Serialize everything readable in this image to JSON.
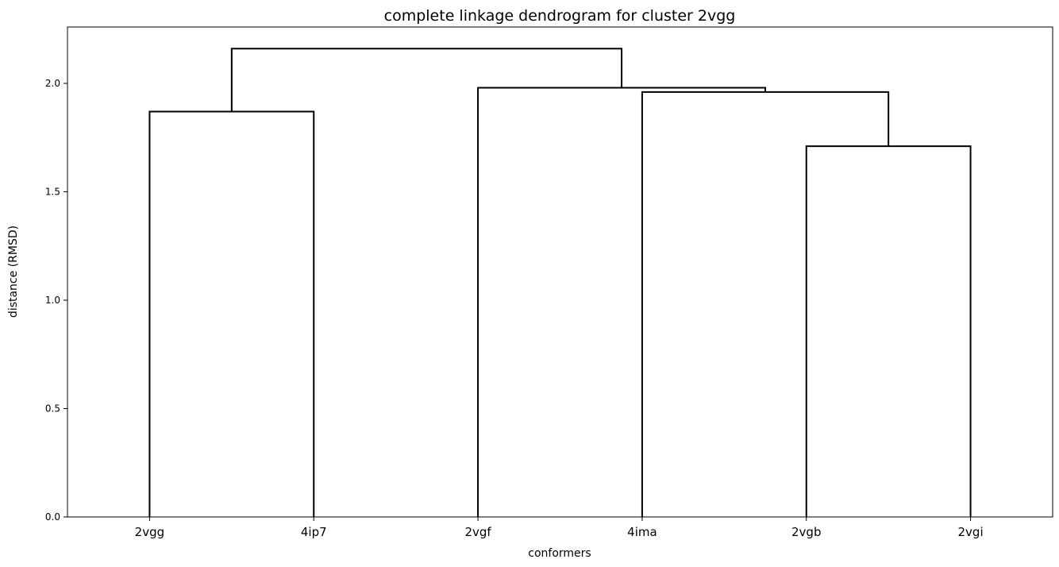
{
  "chart_data": {
    "type": "dendrogram",
    "title": "complete linkage dendrogram for cluster 2vgg",
    "xlabel": "conformers",
    "ylabel": "distance (RMSD)",
    "ylim": [
      0,
      2.26
    ],
    "yticks": [
      "0.0",
      "0.5",
      "1.0",
      "1.5",
      "2.0"
    ],
    "ytick_values": [
      0.0,
      0.5,
      1.0,
      1.5,
      2.0
    ],
    "leaves": [
      "2vgg",
      "4ip7",
      "2vgf",
      "4ima",
      "2vgb",
      "2vgi"
    ],
    "merges": [
      {
        "left": "2vgb",
        "right": "2vgi",
        "height": 1.71
      },
      {
        "left": "2vgg",
        "right": "4ip7",
        "height": 1.87
      },
      {
        "left": "4ima",
        "right": "(2vgb, 2vgi)",
        "height": 1.96
      },
      {
        "left": "2vgf",
        "right": "(4ima, 2vgb, 2vgi)",
        "height": 1.98
      },
      {
        "left": "(2vgg, 4ip7)",
        "right": "(2vgf, 4ima, 2vgb, 2vgi)",
        "height": 2.16
      }
    ],
    "link_color": "#000000",
    "grid": false,
    "legend": "none"
  }
}
